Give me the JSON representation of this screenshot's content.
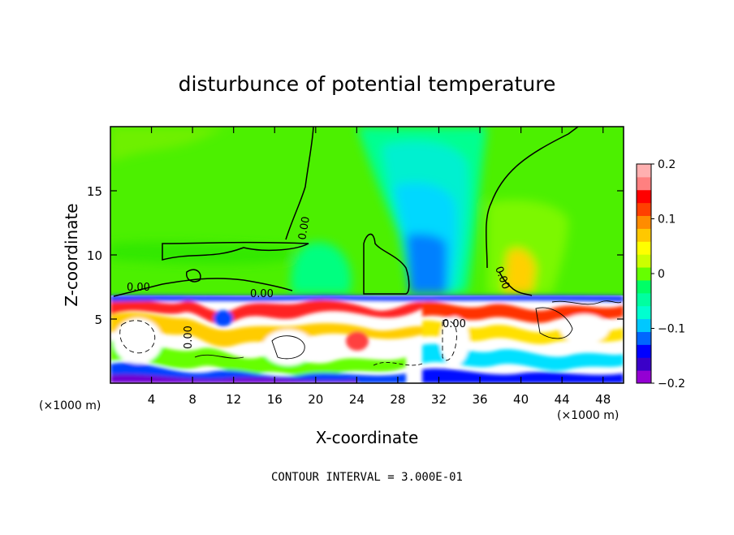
{
  "chart_data": {
    "type": "heatmap",
    "title": "disturbunce of potential temperature",
    "xlabel": "X-coordinate",
    "ylabel": "Z-coordinate",
    "x_unit": "(×1000 m)",
    "x_unit_right": "(×1000 m)",
    "xlim": [
      0,
      50
    ],
    "ylim": [
      0,
      20
    ],
    "x_ticks": [
      4,
      8,
      12,
      16,
      20,
      24,
      28,
      32,
      36,
      40,
      44,
      48
    ],
    "y_ticks": [
      5,
      10,
      15
    ],
    "colorbar": {
      "range": [
        -0.2,
        0.2
      ],
      "ticks": [
        "0.2",
        "0.1",
        "0",
        "−0.1",
        "−0.2"
      ],
      "colors": [
        "#9400d3",
        "#3a00c8",
        "#0000ff",
        "#0066ff",
        "#00c8ff",
        "#00ffd0",
        "#00ffa0",
        "#00ff66",
        "#66ff00",
        "#ccff00",
        "#ffff00",
        "#ffc800",
        "#ff8c00",
        "#ff4000",
        "#ff0000",
        "#ff8080",
        "#ffb0b0"
      ]
    },
    "contour_labels": [
      "0.00",
      "0.00",
      "0.00",
      "0.00",
      "0.00",
      "0.00"
    ],
    "contour_interval_text": "CONTOUR INTERVAL = 3.000E-01"
  }
}
